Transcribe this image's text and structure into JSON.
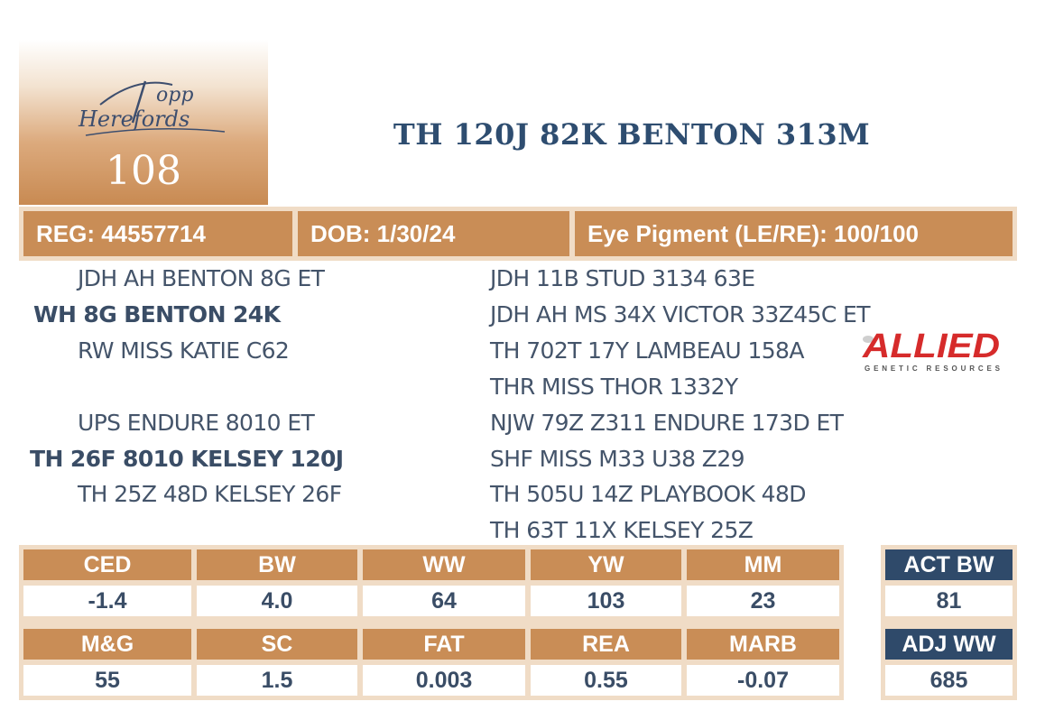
{
  "header": {
    "logo_text": "Topp Herefords",
    "lot_number": "108",
    "animal_name": "TH 120J 82K BENTON 313M"
  },
  "info": {
    "reg": "REG: 44557714",
    "dob": "DOB: 1/30/24",
    "eye_pigment": "Eye Pigment (LE/RE): 100/100"
  },
  "pedigree": {
    "sire": "WH 8G BENTON 24K",
    "sire_sire": "JDH AH BENTON 8G ET",
    "sire_dam": "RW MISS KATIE C62",
    "dam": "TH 26F 8010 KELSEY 120J",
    "dam_sire": "UPS ENDURE 8010 ET",
    "dam_dam": "TH 25Z 48D KELSEY 26F",
    "right": [
      "JDH 11B STUD 3134 63E",
      "JDH AH MS 34X VICTOR 33Z45C ET",
      "TH 702T 17Y LAMBEAU 158A",
      "THR MISS THOR 1332Y",
      "NJW 79Z Z311 ENDURE 173D ET",
      "SHF MISS M33 U38 Z29",
      "TH 505U 14Z PLAYBOOK 48D",
      "TH 63T 11X KELSEY 25Z"
    ]
  },
  "sponsor_logo": {
    "text": "ALLIED",
    "subtext": "GENETIC RESOURCES",
    "color": "#d62b2b"
  },
  "epds": {
    "row1_headers": [
      "CED",
      "BW",
      "WW",
      "YW",
      "MM"
    ],
    "row1_values": [
      "-1.4",
      "4.0",
      "64",
      "103",
      "23"
    ],
    "row2_headers": [
      "M&G",
      "SC",
      "FAT",
      "REA",
      "MARB"
    ],
    "row2_values": [
      "55",
      "1.5",
      "0.003",
      "0.55",
      "-0.07"
    ]
  },
  "actuals": {
    "act_bw_label": "ACT BW",
    "act_bw_value": "81",
    "adj_ww_label": "ADJ WW",
    "adj_ww_value": "685"
  },
  "colors": {
    "accent": "#c98d56",
    "light_accent": "#f0dcc6",
    "navy": "#2f4a6a",
    "title": "#2e4d70"
  }
}
